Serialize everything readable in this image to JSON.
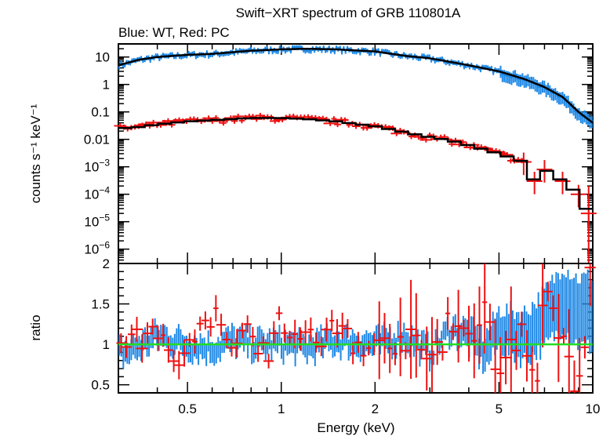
{
  "chart_data": [
    {
      "type": "scatter",
      "title": "Swift−XRT spectrum of GRB 110801A",
      "subtitle": "Blue: WT, Red: PC",
      "ylabel": "counts s⁻¹ keV⁻¹",
      "xscale": "log",
      "yscale": "log",
      "xlim": [
        0.3,
        10
      ],
      "ylim": [
        3e-07,
        30
      ],
      "x_ticks": [
        0.5,
        1,
        2,
        5,
        10
      ],
      "y_tick_labels": [
        {
          "value": 10,
          "label": "10"
        },
        {
          "value": 1,
          "label": "1"
        },
        {
          "value": 0.1,
          "label": "0.1"
        },
        {
          "value": 0.01,
          "label": "0.01"
        },
        {
          "value": 0.001,
          "base": "10",
          "exp": "−3"
        },
        {
          "value": 0.0001,
          "base": "10",
          "exp": "−4"
        },
        {
          "value": 1e-05,
          "base": "10",
          "exp": "−5"
        },
        {
          "value": 1e-06,
          "base": "10",
          "exp": "−6"
        }
      ],
      "colors": {
        "wt": "#1e88e5",
        "pc": "#ee1111",
        "model": "#000000"
      },
      "wt_data": {
        "x": [
          0.3,
          0.35,
          0.4,
          0.5,
          0.6,
          0.7,
          0.8,
          1.0,
          1.2,
          1.5,
          2.0,
          2.5,
          3.0,
          4.0,
          5.0,
          6.0,
          7.0,
          8.0,
          9.0,
          10.0
        ],
        "y": [
          5,
          8,
          10,
          12,
          13,
          15,
          17,
          19,
          20,
          19,
          16,
          11,
          9,
          5,
          3,
          1.6,
          0.8,
          0.35,
          0.1,
          0.04
        ]
      },
      "pc_data": {
        "x": [
          0.3,
          0.35,
          0.4,
          0.5,
          0.6,
          0.7,
          0.8,
          1.0,
          1.2,
          1.5,
          2.0,
          2.5,
          3.0,
          3.5,
          4.0,
          5.0,
          6.0,
          6.5,
          7.0,
          8.0,
          9.0,
          9.7
        ],
        "y": [
          0.025,
          0.028,
          0.035,
          0.045,
          0.05,
          0.055,
          0.06,
          0.06,
          0.055,
          0.045,
          0.03,
          0.018,
          0.012,
          0.009,
          0.006,
          0.003,
          0.0015,
          0.0003,
          0.0008,
          0.0003,
          0.0001,
          2e-05
        ]
      }
    },
    {
      "type": "scatter",
      "xlabel": "Energy (keV)",
      "ylabel": "ratio",
      "xscale": "log",
      "xlim": [
        0.3,
        10
      ],
      "ylim": [
        0.4,
        2.0
      ],
      "x_ticks": [
        0.5,
        1,
        2,
        5,
        10
      ],
      "y_ticks": [
        0.5,
        1,
        1.5,
        2
      ],
      "reference_line": {
        "y": 1,
        "color": "#22dd22"
      },
      "wt_ratio": {
        "x": [
          0.32,
          0.4,
          0.5,
          0.6,
          0.7,
          0.8,
          1.0,
          1.2,
          1.5,
          2.0,
          2.5,
          3.0,
          3.5,
          4.0,
          4.5,
          5.0,
          6.0,
          7.0,
          8.0,
          9.0
        ],
        "y": [
          0.9,
          1.1,
          1.0,
          0.95,
          1.05,
          1.0,
          1.0,
          0.95,
          1.05,
          1.0,
          1.1,
          0.9,
          1.2,
          1.1,
          0.9,
          1.2,
          1.1,
          1.3,
          1.6,
          1.4
        ]
      },
      "pc_ratio": {
        "x": [
          0.33,
          0.4,
          0.5,
          0.55,
          0.6,
          0.7,
          0.8,
          0.9,
          1.0,
          1.2,
          1.5,
          2.0,
          2.5,
          3.0,
          3.5,
          4.0,
          4.5,
          5.0,
          6.0,
          6.5,
          7.0,
          8.0,
          9.0,
          9.7
        ],
        "y": [
          1.0,
          1.1,
          0.85,
          1.3,
          1.4,
          1.1,
          1.2,
          0.9,
          1.3,
          1.0,
          1.2,
          0.9,
          1.1,
          0.8,
          1.3,
          1.0,
          1.5,
          0.7,
          1.3,
          0.45,
          1.7,
          1.0,
          0.45,
          1.9
        ]
      }
    }
  ]
}
